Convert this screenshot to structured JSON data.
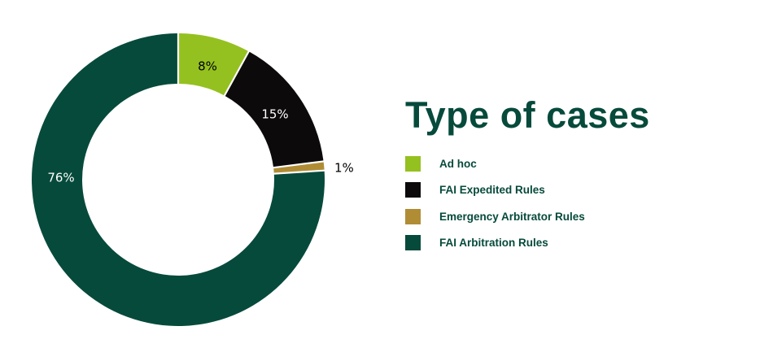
{
  "chart_data": {
    "type": "pie",
    "title": "Type of cases",
    "categories": [
      "Ad hoc",
      "FAI Expedited Rules",
      "Emergency Arbitrator Rules",
      "FAI Arbitration Rules"
    ],
    "values": [
      8,
      15,
      1,
      76
    ],
    "value_labels": [
      "8%",
      "15%",
      "1%",
      "76%"
    ],
    "colors": [
      "#94c11f",
      "#0d0a0b",
      "#b08d35",
      "#064a3b"
    ],
    "label_colors": [
      "#000000",
      "#ffffff",
      "#000000",
      "#ffffff"
    ],
    "unit": "%",
    "start_angle_deg": 0,
    "direction": "clockwise",
    "donut": true,
    "legend_position": "right"
  }
}
